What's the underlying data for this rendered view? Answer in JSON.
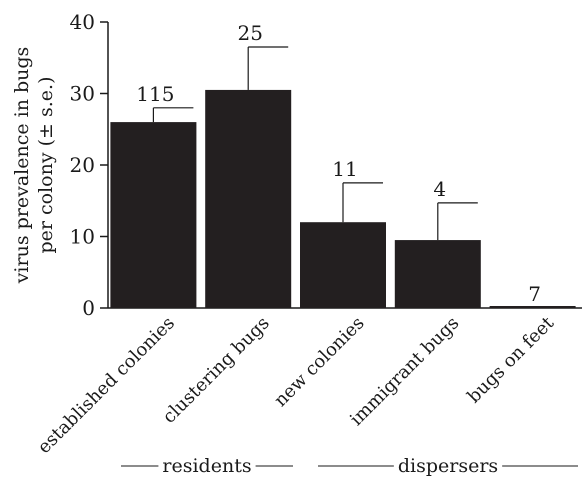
{
  "chart_data": {
    "type": "bar",
    "ylabel_lines": [
      "virus prevalence in bugs",
      "per colony (± s.e.)"
    ],
    "ylim": [
      0,
      40
    ],
    "yticks": [
      0,
      10,
      20,
      30,
      40
    ],
    "categories": [
      "established colonies",
      "clustering bugs",
      "new colonies",
      "immigrant bugs",
      "bugs on feet"
    ],
    "values": [
      26,
      30.5,
      12,
      9.5,
      0
    ],
    "errors": [
      2,
      6,
      5.5,
      5.2,
      0
    ],
    "n_labels": [
      "115",
      "25",
      "11",
      "4",
      "7"
    ],
    "groups": [
      {
        "label": "residents",
        "categories": [
          "established colonies",
          "clustering bugs"
        ]
      },
      {
        "label": "dispersers",
        "categories": [
          "new colonies",
          "immigrant bugs",
          "bugs on feet"
        ]
      }
    ],
    "grid": false,
    "colors": {
      "bar": "#231f20",
      "axis": "#1a1a1a"
    }
  }
}
